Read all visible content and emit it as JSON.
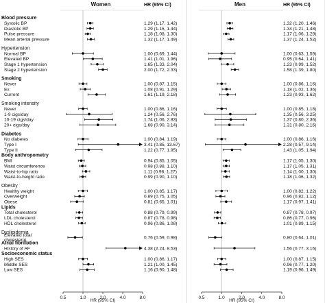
{
  "chart_data": {
    "type": "forest",
    "x_scale": "log2",
    "xlim": [
      0.5,
      8.0
    ],
    "xticks": [
      "0.5",
      "1.0",
      "2.0",
      "4.0",
      "8.0"
    ],
    "xlabel": "HR (95% CI)",
    "reference_line": 1.0,
    "panels": [
      {
        "title": "Women",
        "ci_header": "HR (95% CI)"
      },
      {
        "title": "Men",
        "ci_header": "HR (95% CI)"
      }
    ],
    "rows": [
      {
        "kind": "header",
        "label": "Blood pressure",
        "bold": true
      },
      {
        "kind": "data",
        "label": "Systolic BP",
        "women": {
          "hr": 1.29,
          "lo": 1.17,
          "hi": 1.42,
          "text": "1.29 (1.17, 1.42)"
        },
        "men": {
          "hr": 1.32,
          "lo": 1.2,
          "hi": 1.46,
          "text": "1.32 (1.20, 1.46)"
        }
      },
      {
        "kind": "data",
        "label": "Diastolic BP",
        "women": {
          "hr": 1.29,
          "lo": 1.15,
          "hi": 1.44,
          "text": "1.29 (1.15, 1.44)"
        },
        "men": {
          "hr": 1.34,
          "lo": 1.21,
          "hi": 1.48,
          "text": "1.34 (1.21, 1.48)"
        }
      },
      {
        "kind": "data",
        "label": "Pulse pressure",
        "women": {
          "hr": 1.18,
          "lo": 1.08,
          "hi": 1.3,
          "text": "1.18 (1.08, 1.30)"
        },
        "men": {
          "hr": 1.17,
          "lo": 1.06,
          "hi": 1.29,
          "text": "1.17 (1.06, 1.29)"
        }
      },
      {
        "kind": "data",
        "label": "Mean arterial pressure",
        "women": {
          "hr": 1.32,
          "lo": 1.17,
          "hi": 1.49,
          "text": "1.32 (1.17, 1.49)"
        },
        "men": {
          "hr": 1.37,
          "lo": 1.24,
          "hi": 1.52,
          "text": "1.37 (1.24, 1.52)"
        }
      },
      {
        "kind": "gap"
      },
      {
        "kind": "header",
        "label": "Hypertension",
        "bold": false
      },
      {
        "kind": "data",
        "label": "Normal BP",
        "women": {
          "hr": 1.0,
          "lo": 0.69,
          "hi": 1.44,
          "text": "1.00 (0.69, 1.44)"
        },
        "men": {
          "hr": 1.0,
          "lo": 0.63,
          "hi": 1.59,
          "text": "1.00 (0.63, 1.59)"
        }
      },
      {
        "kind": "data",
        "label": "Elevated BP",
        "women": {
          "hr": 1.41,
          "lo": 1.01,
          "hi": 1.96,
          "text": "1.41 (1.01, 1.96)"
        },
        "men": {
          "hr": 0.95,
          "lo": 0.64,
          "hi": 1.41,
          "text": "0.95 (0.64, 1.41)"
        }
      },
      {
        "kind": "data",
        "label": "Stage 1 hypertension",
        "women": {
          "hr": 1.65,
          "lo": 1.33,
          "hi": 2.04,
          "text": "1.65 (1.33, 2.04)"
        },
        "men": {
          "hr": 1.23,
          "lo": 0.99,
          "hi": 1.52,
          "text": "1.23 (0.99, 1.52)"
        }
      },
      {
        "kind": "data",
        "label": "Stage 2 hypertension",
        "women": {
          "hr": 2.0,
          "lo": 1.72,
          "hi": 2.33,
          "text": "2.00 (1.72, 2.33)"
        },
        "men": {
          "hr": 1.58,
          "lo": 1.39,
          "hi": 1.8,
          "text": "1.58 (1.39, 1.80)"
        }
      },
      {
        "kind": "gap"
      },
      {
        "kind": "header",
        "label": "Smoking",
        "bold": true
      },
      {
        "kind": "data",
        "label": "Never",
        "women": {
          "hr": 1.0,
          "lo": 0.87,
          "hi": 1.15,
          "text": "1.00 (0.87, 1.15)"
        },
        "men": {
          "hr": 1.0,
          "lo": 0.86,
          "hi": 1.16,
          "text": "1.00 (0.86, 1.16)"
        }
      },
      {
        "kind": "data",
        "label": "Ex",
        "women": {
          "hr": 1.08,
          "lo": 0.91,
          "hi": 1.29,
          "text": "1.08 (0.91, 1.29)"
        },
        "men": {
          "hr": 1.18,
          "lo": 1.02,
          "hi": 1.36,
          "text": "1.18 (1.02, 1.36)"
        }
      },
      {
        "kind": "data",
        "label": "Current",
        "women": {
          "hr": 1.61,
          "lo": 1.19,
          "hi": 2.18,
          "text": "1.61 (1.19, 2.18)"
        },
        "men": {
          "hr": 1.23,
          "lo": 0.93,
          "hi": 1.62,
          "text": "1.23 (0.93, 1.62)"
        }
      },
      {
        "kind": "gap"
      },
      {
        "kind": "header",
        "label": "Smoking intensity",
        "bold": false
      },
      {
        "kind": "data",
        "label": "Never",
        "women": {
          "hr": 1.0,
          "lo": 0.86,
          "hi": 1.16,
          "text": "1.00 (0.86, 1.16)"
        },
        "men": {
          "hr": 1.0,
          "lo": 0.85,
          "hi": 1.18,
          "text": "1.00 (0.85, 1.18)"
        }
      },
      {
        "kind": "data",
        "label": "1-9 cigs/day",
        "women": {
          "hr": 1.24,
          "lo": 0.56,
          "hi": 2.76,
          "text": "1.24 (0.56, 2.76)"
        },
        "men": {
          "hr": 1.35,
          "lo": 0.56,
          "hi": 3.25,
          "text": "1.35 (0.56, 3.25)"
        }
      },
      {
        "kind": "data",
        "label": "10-19 cigs/day",
        "women": {
          "hr": 1.74,
          "lo": 1.06,
          "hi": 2.83,
          "text": "1.74 (1.06, 2.83)"
        },
        "men": {
          "hr": 1.37,
          "lo": 0.8,
          "hi": 2.36,
          "text": "1.37 (0.80, 2.36)"
        }
      },
      {
        "kind": "data",
        "label": "20+ cigs/day",
        "women": {
          "hr": 1.68,
          "lo": 0.9,
          "hi": 3.14,
          "text": "1.68 (0.90, 3.14)"
        },
        "men": {
          "hr": 1.31,
          "lo": 0.8,
          "hi": 2.16,
          "text": "1.31 (0.80, 2.16)"
        }
      },
      {
        "kind": "gap"
      },
      {
        "kind": "header",
        "label": "Diabetes",
        "bold": true
      },
      {
        "kind": "data",
        "label": "No diabetes",
        "women": {
          "hr": 1.0,
          "lo": 0.84,
          "hi": 1.19,
          "text": "1.00 (0.84, 1.19)"
        },
        "men": {
          "hr": 1.0,
          "lo": 0.86,
          "hi": 1.16,
          "text": "1.00 (0.86, 1.16)"
        }
      },
      {
        "kind": "data",
        "label": "Type I",
        "women": {
          "hr": 3.41,
          "lo": 0.85,
          "hi": 13.67,
          "text": "3.41 (0.85, 13.67)"
        },
        "men": {
          "hr": 2.28,
          "lo": 0.57,
          "hi": 9.14,
          "text": "2.28 (0.57, 9.14)"
        }
      },
      {
        "kind": "data",
        "label": "Type II",
        "women": {
          "hr": 1.22,
          "lo": 0.77,
          "hi": 1.95,
          "text": "1.22 (0.77, 1.95)"
        },
        "men": {
          "hr": 1.43,
          "lo": 1.05,
          "hi": 1.94,
          "text": "1.43 (1.05, 1.94)"
        }
      },
      {
        "kind": "header",
        "label": "Body anthropometry",
        "bold": true
      },
      {
        "kind": "data",
        "label": "BMI",
        "women": {
          "hr": 0.94,
          "lo": 0.85,
          "hi": 1.05,
          "text": "0.94 (0.85, 1.05)"
        },
        "men": {
          "hr": 1.17,
          "lo": 1.05,
          "hi": 1.3,
          "text": "1.17 (1.05, 1.30)"
        }
      },
      {
        "kind": "data",
        "label": "Waist circumference",
        "women": {
          "hr": 0.98,
          "lo": 0.88,
          "hi": 1.1,
          "text": "0.98 (0.88, 1.10)"
        },
        "men": {
          "hr": 1.17,
          "lo": 1.05,
          "hi": 1.31,
          "text": "1.17 (1.05, 1.31)"
        }
      },
      {
        "kind": "data",
        "label": "Waist-to-hip ratio",
        "women": {
          "hr": 1.11,
          "lo": 0.98,
          "hi": 1.27,
          "text": "1.11 (0.98, 1.27)"
        },
        "men": {
          "hr": 1.14,
          "lo": 1.0,
          "hi": 1.3,
          "text": "1.14 (1.00, 1.30)"
        }
      },
      {
        "kind": "data",
        "label": "Waist-to-height ratio",
        "women": {
          "hr": 0.99,
          "lo": 0.9,
          "hi": 1.1,
          "text": "0.99 (0.90, 1.10)"
        },
        "men": {
          "hr": 1.18,
          "lo": 1.06,
          "hi": 1.32,
          "text": "1.18 (1.06, 1.32)"
        }
      },
      {
        "kind": "gap"
      },
      {
        "kind": "header",
        "label": "Obesity",
        "bold": false
      },
      {
        "kind": "data",
        "label": "Healthy weight",
        "women": {
          "hr": 1.0,
          "lo": 0.85,
          "hi": 1.17,
          "text": "1.00 (0.85, 1.17)"
        },
        "men": {
          "hr": 1.0,
          "lo": 0.82,
          "hi": 1.22,
          "text": "1.00 (0.82, 1.22)"
        }
      },
      {
        "kind": "data",
        "label": "Overweight",
        "women": {
          "hr": 0.89,
          "lo": 0.75,
          "hi": 1.05,
          "text": "0.89 (0.75, 1.05)"
        },
        "men": {
          "hr": 0.96,
          "lo": 0.82,
          "hi": 1.12,
          "text": "0.96 (0.82, 1.12)"
        }
      },
      {
        "kind": "data",
        "label": "Obese",
        "women": {
          "hr": 0.81,
          "lo": 0.65,
          "hi": 1.01,
          "text": "0.81 (0.65, 1.01)"
        },
        "men": {
          "hr": 1.17,
          "lo": 0.97,
          "hi": 1.41,
          "text": "1.17 (0.97, 1.41)"
        }
      },
      {
        "kind": "header",
        "label": "Lipids",
        "bold": true
      },
      {
        "kind": "data",
        "label": "Total cholesterol",
        "women": {
          "hr": 0.88,
          "lo": 0.79,
          "hi": 0.99,
          "text": "0.88 (0.79, 0.99)"
        },
        "men": {
          "hr": 0.87,
          "lo": 0.78,
          "hi": 0.97,
          "text": "0.87 (0.78, 0.97)"
        }
      },
      {
        "kind": "data",
        "label": "LDL cholesterol",
        "women": {
          "hr": 0.87,
          "lo": 0.78,
          "hi": 0.98,
          "text": "0.87 (0.78, 0.98)"
        },
        "men": {
          "hr": 0.86,
          "lo": 0.77,
          "hi": 0.96,
          "text": "0.86 (0.77, 0.96)"
        }
      },
      {
        "kind": "data",
        "label": "HDL cholesterol",
        "women": {
          "hr": 0.96,
          "lo": 0.86,
          "hi": 1.08,
          "text": "0.96 (0.86, 1.08)"
        },
        "men": {
          "hr": 1.01,
          "lo": 0.89,
          "hi": 1.15,
          "text": "1.01 (0.89, 1.15)"
        }
      },
      {
        "kind": "gap"
      },
      {
        "kind": "header",
        "label": "Dyslipidemia",
        "bold": false
      },
      {
        "kind": "data",
        "label": "Elevated total",
        "label2": "cholesterol",
        "women": {
          "hr": 0.76,
          "lo": 0.59,
          "hi": 0.98,
          "text": "0.76 (0.59, 0.98)"
        },
        "men": {
          "hr": 0.8,
          "lo": 0.64,
          "hi": 1.01,
          "text": "0.80 (0.64, 1.01)"
        }
      },
      {
        "kind": "header",
        "label": "Atrial fibrillation",
        "bold": true
      },
      {
        "kind": "data",
        "label": "History of AF",
        "women": {
          "hr": 4.38,
          "lo": 2.24,
          "hi": 8.53,
          "text": "4.38 (2.24, 8.53)"
        },
        "men": {
          "hr": 1.56,
          "lo": 0.77,
          "hi": 3.16,
          "text": "1.56 (0.77, 3.16)"
        }
      },
      {
        "kind": "header",
        "label": "Socioeconomic status",
        "bold": true
      },
      {
        "kind": "data",
        "label": "High SES",
        "women": {
          "hr": 1.0,
          "lo": 0.86,
          "hi": 1.17,
          "text": "1.00 (0.86, 1.17)"
        },
        "men": {
          "hr": 1.0,
          "lo": 0.87,
          "hi": 1.15,
          "text": "1.00 (0.87, 1.15)"
        }
      },
      {
        "kind": "data",
        "label": "Middle SES",
        "women": {
          "hr": 1.21,
          "lo": 1.0,
          "hi": 1.45,
          "text": "1.21 (1.00, 1.45)"
        },
        "men": {
          "hr": 0.96,
          "lo": 0.77,
          "hi": 1.2,
          "text": "0.96 (0.77, 1.20)"
        }
      },
      {
        "kind": "data",
        "label": "Low SES",
        "women": {
          "hr": 1.16,
          "lo": 0.9,
          "hi": 1.48,
          "text": "1.16 (0.90, 1.48)"
        },
        "men": {
          "hr": 1.19,
          "lo": 0.96,
          "hi": 1.49,
          "text": "1.19 (0.96, 1.49)"
        }
      }
    ]
  }
}
